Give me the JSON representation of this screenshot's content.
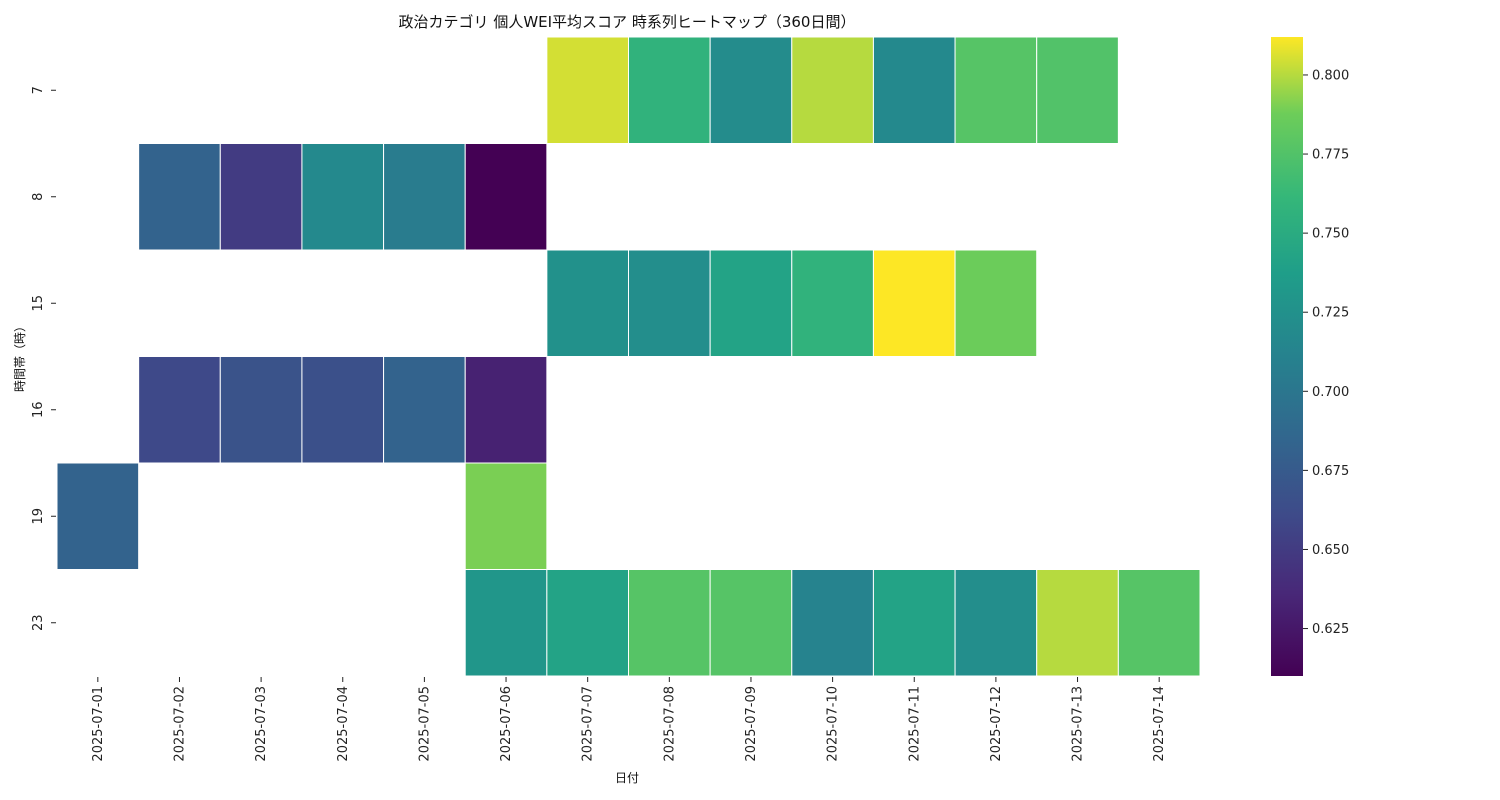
{
  "chart_data": {
    "type": "heatmap",
    "title": "政治カテゴリ 個人WEI平均スコア 時系列ヒートマップ（360日間）",
    "xlabel": "日付",
    "ylabel": "時間帯（時）",
    "x": [
      "2025-07-01",
      "2025-07-02",
      "2025-07-03",
      "2025-07-04",
      "2025-07-05",
      "2025-07-06",
      "2025-07-07",
      "2025-07-08",
      "2025-07-09",
      "2025-07-10",
      "2025-07-11",
      "2025-07-12",
      "2025-07-13",
      "2025-07-14"
    ],
    "y": [
      "7",
      "8",
      "15",
      "16",
      "19",
      "23"
    ],
    "values": [
      [
        null,
        null,
        null,
        null,
        null,
        null,
        0.805,
        0.757,
        0.72,
        0.8,
        0.718,
        0.777,
        0.775,
        null
      ],
      [
        null,
        0.682,
        0.65,
        0.718,
        0.705,
        0.61,
        null,
        null,
        null,
        null,
        null,
        null,
        null,
        null
      ],
      [
        null,
        null,
        null,
        null,
        null,
        null,
        0.725,
        0.722,
        0.742,
        0.757,
        0.812,
        0.787,
        null,
        null
      ],
      [
        null,
        0.66,
        0.668,
        0.666,
        0.682,
        0.632,
        null,
        null,
        null,
        null,
        null,
        null,
        null,
        null
      ],
      [
        0.682,
        null,
        null,
        null,
        null,
        0.79,
        null,
        null,
        null,
        null,
        null,
        null,
        null,
        null
      ],
      [
        null,
        null,
        null,
        null,
        null,
        0.73,
        0.742,
        0.777,
        0.777,
        0.712,
        0.742,
        0.722,
        0.8,
        0.777
      ]
    ],
    "colormap": "viridis",
    "colorbar": {
      "range": [
        0.61,
        0.812
      ],
      "ticks": [
        "0.625",
        "0.650",
        "0.675",
        "0.700",
        "0.725",
        "0.750",
        "0.775",
        "0.800"
      ]
    }
  }
}
